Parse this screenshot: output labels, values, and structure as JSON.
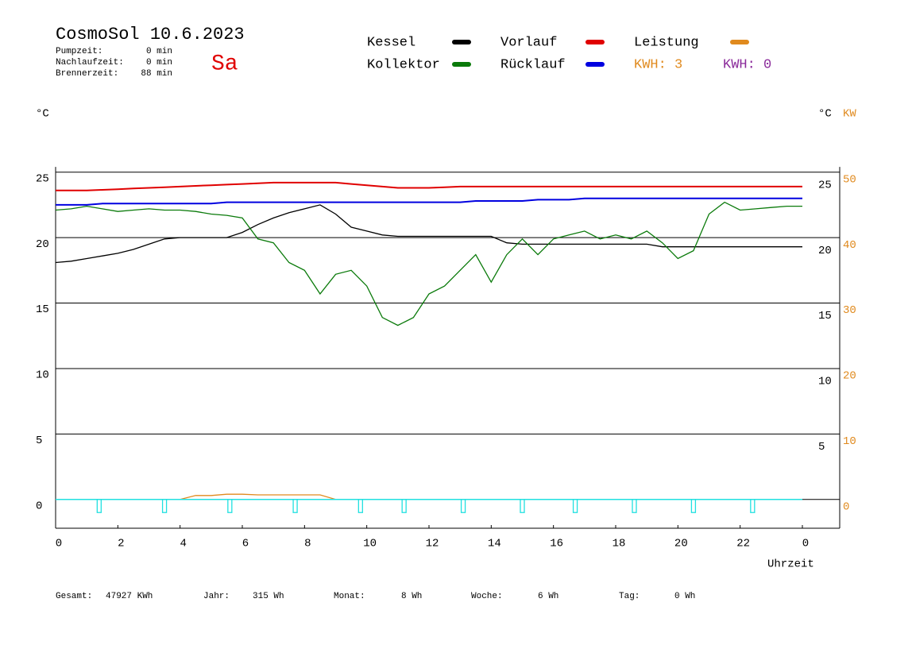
{
  "chart_data": {
    "type": "line",
    "title": "CosmoSol 10.6.2023",
    "weekday": "Sa",
    "info": [
      {
        "label": "Pumpzeit:",
        "value": "0 min"
      },
      {
        "label": "Nachlaufzeit:",
        "value": "0 min"
      },
      {
        "label": "Brennerzeit:",
        "value": "88 min"
      }
    ],
    "kwh": [
      {
        "text": "KWH: 3",
        "color": "#e08a1e"
      },
      {
        "text": "KWH: 0",
        "color": "#8a2a9a"
      }
    ],
    "y_label": "°C",
    "y_right_label": "°C",
    "y2_label": "KW",
    "x_label": "Uhrzeit",
    "footer": [
      {
        "label": "Gesamt:",
        "value": "47927 KWh"
      },
      {
        "label": "Jahr:",
        "value": "315 Wh"
      },
      {
        "label": "Monat:",
        "value": "8 Wh"
      },
      {
        "label": "Woche:",
        "value": "6 Wh"
      },
      {
        "label": "Tag:",
        "value": "0 Wh"
      }
    ],
    "xlim": [
      0,
      25.2
    ],
    "xticks": [
      0,
      2,
      4,
      6,
      8,
      10,
      12,
      14,
      16,
      18,
      20,
      22,
      {
        "value": 24,
        "label": "0"
      }
    ],
    "ylim": [
      -2.2,
      25.4
    ],
    "yticks": [
      0,
      5,
      10,
      15,
      20,
      25
    ],
    "yticks_right": [
      5,
      10,
      15,
      20,
      25
    ],
    "y2lim": [
      -4.4,
      50.8
    ],
    "y2ticks": [
      0,
      10,
      20,
      30,
      40,
      50
    ],
    "grid": true,
    "x": [
      0,
      0.5,
      1,
      1.5,
      2,
      2.5,
      3,
      3.5,
      4,
      4.5,
      5,
      5.5,
      6,
      6.5,
      7,
      7.5,
      8,
      8.5,
      9,
      9.5,
      10,
      10.5,
      11,
      11.5,
      12,
      12.5,
      13,
      13.5,
      14,
      14.5,
      15,
      15.5,
      16,
      16.5,
      17,
      17.5,
      18,
      18.5,
      19,
      19.5,
      20,
      20.5,
      21,
      21.5,
      22,
      22.5,
      23,
      23.5,
      24
    ],
    "series": [
      {
        "name": "Kessel",
        "color": "#000000",
        "values": [
          18.1,
          18.2,
          18.4,
          18.6,
          18.8,
          19.1,
          19.5,
          19.9,
          20.0,
          20.0,
          20.0,
          20.0,
          20.4,
          21.0,
          21.5,
          21.9,
          22.2,
          22.5,
          21.8,
          20.8,
          20.5,
          20.2,
          20.1,
          20.1,
          20.1,
          20.1,
          20.1,
          20.1,
          20.1,
          19.6,
          19.5,
          19.5,
          19.5,
          19.5,
          19.5,
          19.5,
          19.5,
          19.5,
          19.5,
          19.3,
          19.3,
          19.3,
          19.3,
          19.3,
          19.3,
          19.3,
          19.3,
          19.3,
          19.3
        ]
      },
      {
        "name": "Kollektor",
        "color": "#0a7a0a",
        "values": [
          22.1,
          22.2,
          22.4,
          22.2,
          22.0,
          22.1,
          22.2,
          22.1,
          22.1,
          22.0,
          21.8,
          21.7,
          21.5,
          19.9,
          19.6,
          18.1,
          17.5,
          15.7,
          17.2,
          17.5,
          16.3,
          13.9,
          13.3,
          13.9,
          15.7,
          16.3,
          17.5,
          18.7,
          16.6,
          18.7,
          19.9,
          18.7,
          19.9,
          20.2,
          20.5,
          19.9,
          20.2,
          19.9,
          20.5,
          19.6,
          18.4,
          19.0,
          21.8,
          22.7,
          22.1,
          22.2,
          22.3,
          22.4,
          22.4
        ]
      },
      {
        "name": "Vorlauf",
        "color": "#e00000",
        "values": [
          23.6,
          23.6,
          23.6,
          23.65,
          23.7,
          23.75,
          23.8,
          23.85,
          23.9,
          23.95,
          24.0,
          24.05,
          24.1,
          24.15,
          24.2,
          24.2,
          24.2,
          24.2,
          24.2,
          24.1,
          24.0,
          23.9,
          23.8,
          23.8,
          23.8,
          23.85,
          23.9,
          23.9,
          23.9,
          23.9,
          23.9,
          23.9,
          23.9,
          23.9,
          23.9,
          23.9,
          23.9,
          23.9,
          23.9,
          23.9,
          23.9,
          23.9,
          23.9,
          23.9,
          23.9,
          23.9,
          23.9,
          23.9,
          23.9
        ]
      },
      {
        "name": "Rücklauf",
        "color": "#0000e0",
        "values": [
          22.5,
          22.5,
          22.5,
          22.6,
          22.6,
          22.6,
          22.6,
          22.6,
          22.6,
          22.6,
          22.6,
          22.7,
          22.7,
          22.7,
          22.7,
          22.7,
          22.7,
          22.7,
          22.7,
          22.7,
          22.7,
          22.7,
          22.7,
          22.7,
          22.7,
          22.7,
          22.7,
          22.8,
          22.8,
          22.8,
          22.8,
          22.9,
          22.9,
          22.9,
          23.0,
          23.0,
          23.0,
          23.0,
          23.0,
          23.0,
          23.0,
          23.0,
          23.0,
          23.0,
          23.0,
          23.0,
          23.0,
          23.0,
          23.0
        ]
      },
      {
        "name": "Leistung",
        "color": "#e08a1e",
        "axis": "y2",
        "values": [
          0,
          0,
          0,
          0,
          0,
          0,
          0,
          0,
          0,
          0.6,
          0.6,
          0.8,
          0.8,
          0.7,
          0.7,
          0.7,
          0.7,
          0.7,
          0,
          0,
          0,
          0,
          0,
          0,
          0,
          0,
          0,
          0,
          0,
          0,
          0,
          0,
          0,
          0,
          0,
          0,
          0,
          0,
          0,
          0,
          0,
          0,
          0,
          0,
          0,
          0,
          0,
          0,
          0
        ]
      }
    ],
    "pump": {
      "color": "#20e0e0",
      "x": [
        1.4,
        3.5,
        5.6,
        7.7,
        9.8,
        11.2,
        13.1,
        15.0,
        16.7,
        18.6,
        20.5,
        22.4
      ],
      "low": -1.0,
      "high": 0
    }
  }
}
